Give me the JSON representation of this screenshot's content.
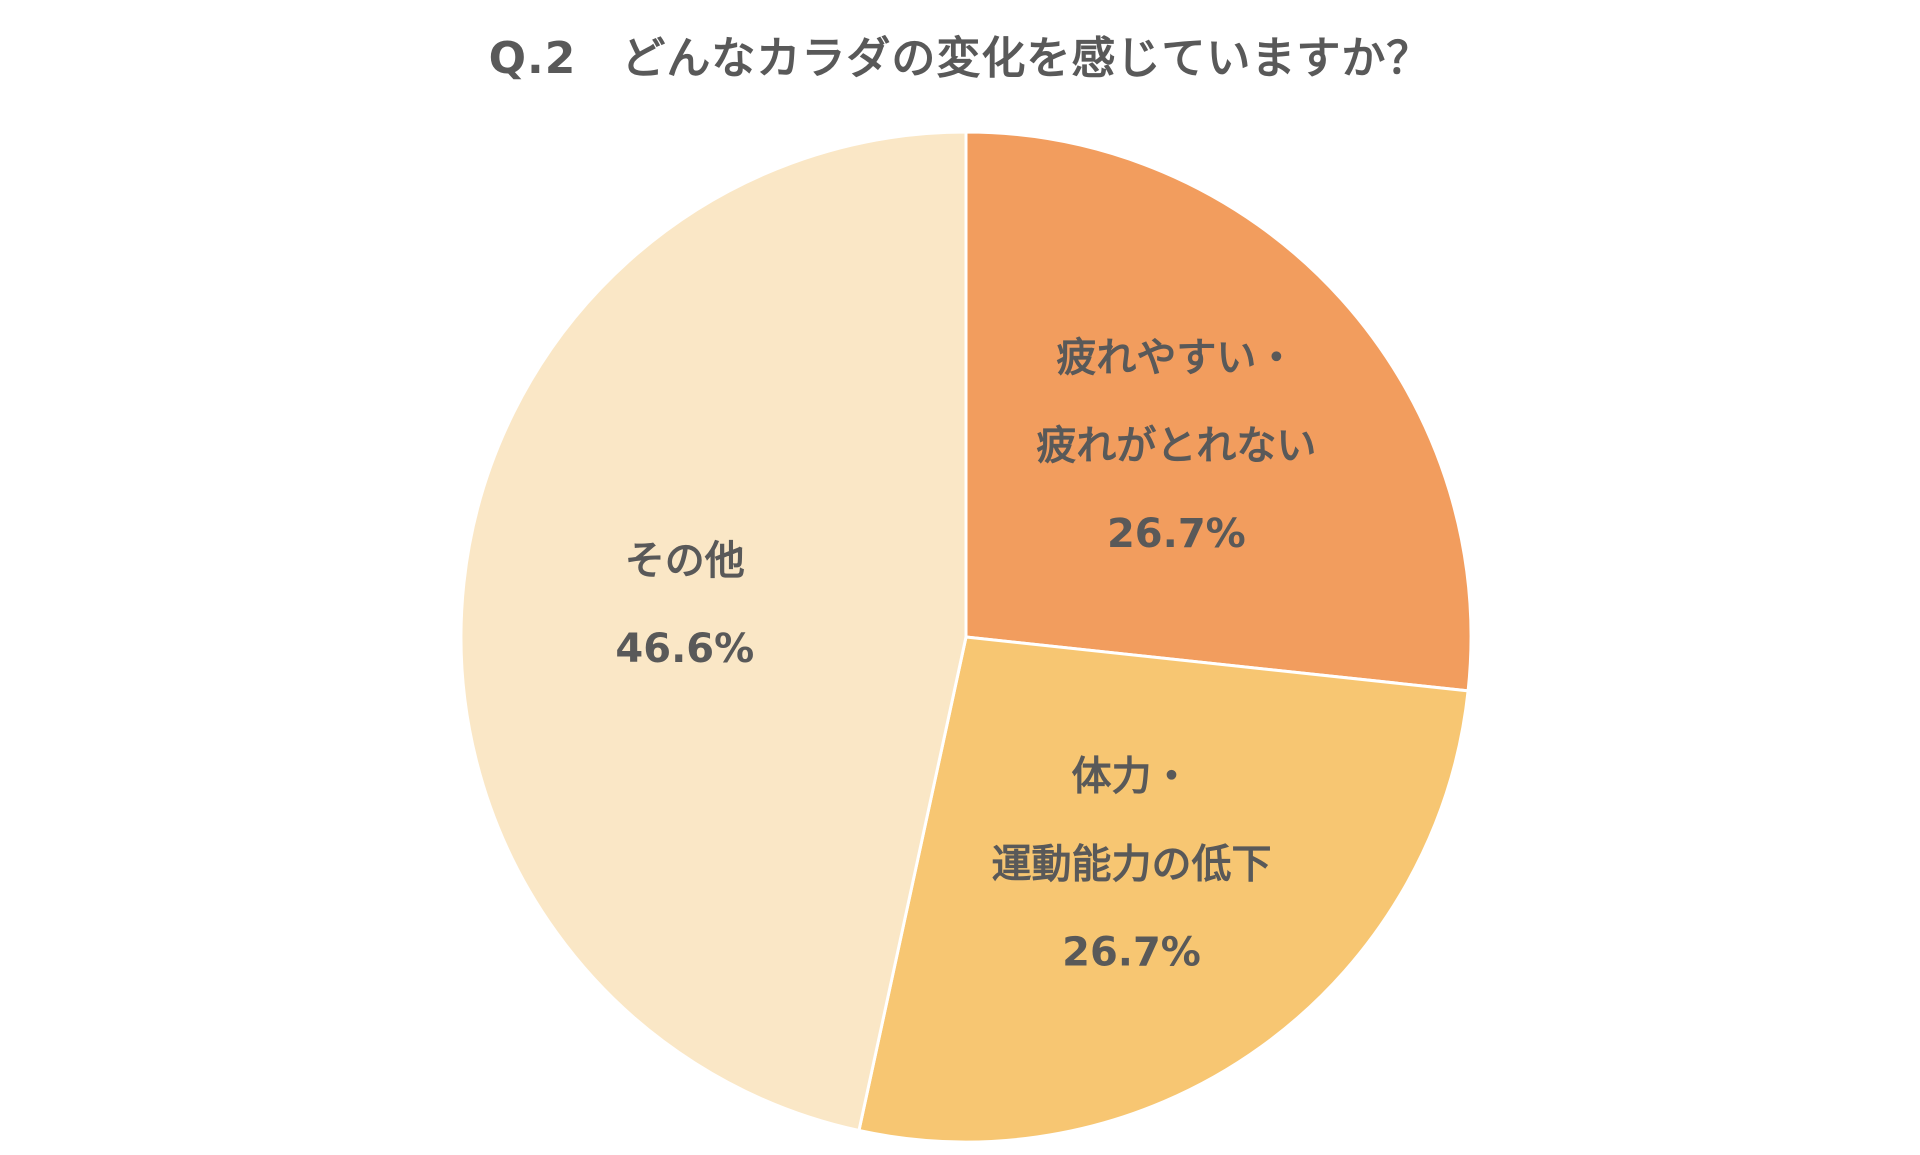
{
  "chart_data": {
    "type": "pie",
    "title": "Q.2　どんなカラダの変化を感じていますか？",
    "start_angle_deg": 0,
    "direction": "clockwise",
    "slices": [
      {
        "label_lines": [
          "疲れやすい・",
          "疲れがとれない"
        ],
        "value": 26.7,
        "value_label": "26.7%",
        "color": "#F29D5E"
      },
      {
        "label_lines": [
          "体力・",
          "運動能力の低下"
        ],
        "value": 26.7,
        "value_label": "26.7%",
        "color": "#F7C672"
      },
      {
        "label_lines": [
          "その他"
        ],
        "value": 46.6,
        "value_label": "46.6%",
        "color": "#FAE7C6"
      }
    ]
  }
}
